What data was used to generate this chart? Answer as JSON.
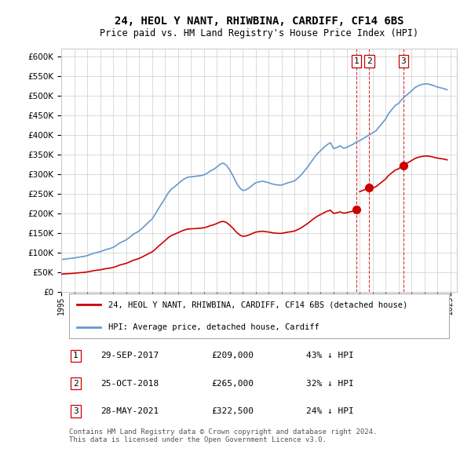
{
  "title": "24, HEOL Y NANT, RHIWBINA, CARDIFF, CF14 6BS",
  "subtitle": "Price paid vs. HM Land Registry's House Price Index (HPI)",
  "hpi_x": [
    1995.0,
    1995.25,
    1995.5,
    1995.75,
    1996.0,
    1996.25,
    1996.5,
    1996.75,
    1997.0,
    1997.25,
    1997.5,
    1997.75,
    1998.0,
    1998.25,
    1998.5,
    1998.75,
    1999.0,
    1999.25,
    1999.5,
    1999.75,
    2000.0,
    2000.25,
    2000.5,
    2000.75,
    2001.0,
    2001.25,
    2001.5,
    2001.75,
    2002.0,
    2002.25,
    2002.5,
    2002.75,
    2003.0,
    2003.25,
    2003.5,
    2003.75,
    2004.0,
    2004.25,
    2004.5,
    2004.75,
    2005.0,
    2005.25,
    2005.5,
    2005.75,
    2006.0,
    2006.25,
    2006.5,
    2006.75,
    2007.0,
    2007.25,
    2007.5,
    2007.75,
    2008.0,
    2008.25,
    2008.5,
    2008.75,
    2009.0,
    2009.25,
    2009.5,
    2009.75,
    2010.0,
    2010.25,
    2010.5,
    2010.75,
    2011.0,
    2011.25,
    2011.5,
    2011.75,
    2012.0,
    2012.25,
    2012.5,
    2012.75,
    2013.0,
    2013.25,
    2013.5,
    2013.75,
    2014.0,
    2014.25,
    2014.5,
    2014.75,
    2015.0,
    2015.25,
    2015.5,
    2015.75,
    2016.0,
    2016.25,
    2016.5,
    2016.75,
    2017.0,
    2017.25,
    2017.5,
    2017.75,
    2018.0,
    2018.25,
    2018.5,
    2018.75,
    2019.0,
    2019.25,
    2019.5,
    2019.75,
    2020.0,
    2020.25,
    2020.5,
    2020.75,
    2021.0,
    2021.25,
    2021.5,
    2021.75,
    2022.0,
    2022.25,
    2022.5,
    2022.75,
    2023.0,
    2023.25,
    2023.5,
    2023.75,
    2024.0,
    2024.25,
    2024.5,
    2024.75
  ],
  "hpi_y": [
    82000,
    83000,
    84000,
    85000,
    86000,
    87500,
    89000,
    90000,
    92000,
    95000,
    98000,
    100000,
    102000,
    105000,
    108000,
    110000,
    113000,
    118000,
    124000,
    128000,
    132000,
    138000,
    145000,
    150000,
    155000,
    162000,
    170000,
    178000,
    185000,
    198000,
    212000,
    225000,
    238000,
    252000,
    262000,
    268000,
    275000,
    282000,
    288000,
    292000,
    293000,
    294000,
    295000,
    296000,
    298000,
    302000,
    308000,
    312000,
    318000,
    325000,
    328000,
    322000,
    310000,
    295000,
    278000,
    265000,
    258000,
    260000,
    265000,
    272000,
    278000,
    280000,
    282000,
    280000,
    278000,
    275000,
    273000,
    272000,
    272000,
    275000,
    278000,
    280000,
    283000,
    290000,
    298000,
    308000,
    318000,
    330000,
    342000,
    352000,
    360000,
    368000,
    375000,
    380000,
    365000,
    368000,
    372000,
    366000,
    368000,
    372000,
    376000,
    382000,
    385000,
    390000,
    395000,
    400000,
    405000,
    410000,
    420000,
    430000,
    440000,
    455000,
    465000,
    475000,
    480000,
    490000,
    498000,
    505000,
    512000,
    520000,
    525000,
    528000,
    530000,
    530000,
    528000,
    525000,
    522000,
    520000,
    518000,
    515000
  ],
  "property_sales": [
    {
      "date_num": 2017.75,
      "price": 209000,
      "label": "1",
      "date_str": "29-SEP-2017",
      "below_hpi": "43%"
    },
    {
      "date_num": 2018.75,
      "price": 265000,
      "label": "2",
      "date_str": "25-OCT-2018",
      "below_hpi": "32%"
    },
    {
      "date_num": 2021.375,
      "price": 322500,
      "label": "3",
      "date_str": "28-MAY-2021",
      "below_hpi": "24%"
    }
  ],
  "sale_line_color": "#cc0000",
  "hpi_line_color": "#6699cc",
  "vline_color": "#cc0000",
  "marker_color": "#cc0000",
  "ylim": [
    0,
    620000
  ],
  "yticks": [
    0,
    50000,
    100000,
    150000,
    200000,
    250000,
    300000,
    350000,
    400000,
    450000,
    500000,
    550000,
    600000
  ],
  "background_color": "#ffffff",
  "grid_color": "#cccccc",
  "footnote": "Contains HM Land Registry data © Crown copyright and database right 2024.\nThis data is licensed under the Open Government Licence v3.0.",
  "legend_label_property": "24, HEOL Y NANT, RHIWBINA, CARDIFF, CF14 6BS (detached house)",
  "legend_label_hpi": "HPI: Average price, detached house, Cardiff",
  "table_rows": [
    [
      "1",
      "29-SEP-2017",
      "£209,000",
      "43% ↓ HPI"
    ],
    [
      "2",
      "25-OCT-2018",
      "£265,000",
      "32% ↓ HPI"
    ],
    [
      "3",
      "28-MAY-2021",
      "£322,500",
      "24% ↓ HPI"
    ]
  ]
}
